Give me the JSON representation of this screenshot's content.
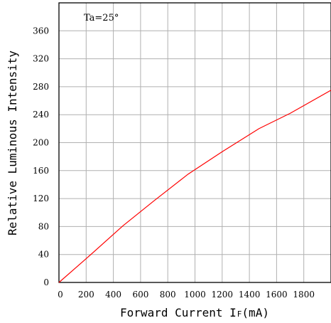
{
  "chart_data": {
    "type": "line",
    "title": "",
    "annotation": "Ta=25°",
    "xlabel": "Forward Current I F (mA)",
    "xlabel_main": "Forward Current I",
    "xlabel_sub": "F",
    "xlabel_unit": "(mA)",
    "ylabel": "Relative Luminous Intensity",
    "xlim": [
      0,
      2000
    ],
    "ylim": [
      0,
      400
    ],
    "x_ticks": [
      0,
      200,
      400,
      600,
      800,
      1000,
      1200,
      1400,
      1600,
      1800
    ],
    "x_tick_labels": [
      "0",
      "200",
      "400",
      "600",
      "800",
      "1000",
      "1200",
      "1400",
      "1600",
      "1800"
    ],
    "y_ticks": [
      0,
      40,
      80,
      120,
      160,
      200,
      240,
      280,
      320,
      360
    ],
    "y_tick_labels": [
      "0",
      "40",
      "80",
      "120",
      "160",
      "200",
      "240",
      "280",
      "320",
      "360"
    ],
    "grid": true,
    "series": [
      {
        "color": "#ff0000",
        "x": [
          0,
          200,
          470,
          700,
          950,
          1200,
          1470,
          1700,
          2000
        ],
        "y": [
          0,
          34,
          81,
          117,
          155,
          187,
          220,
          242,
          275
        ]
      }
    ]
  }
}
